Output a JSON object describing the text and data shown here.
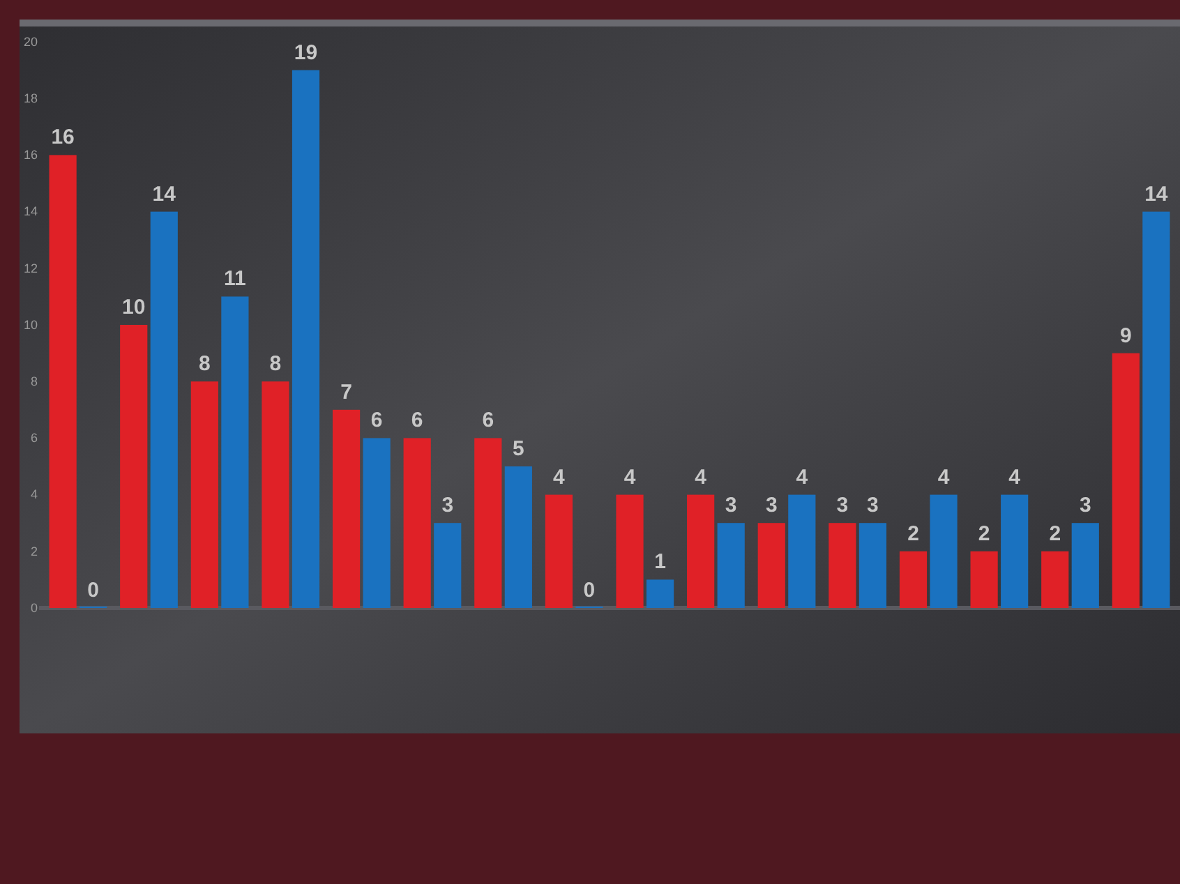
{
  "chart_data": {
    "type": "bar",
    "categories": [
      null,
      null,
      null,
      null,
      null,
      null,
      null,
      null,
      null,
      null,
      null,
      null,
      null,
      null,
      null,
      null
    ],
    "series": [
      {
        "color": "#e02127",
        "values": [
          16,
          10,
          8,
          8,
          7,
          6,
          6,
          4,
          4,
          4,
          3,
          3,
          2,
          2,
          2,
          9
        ]
      },
      {
        "color": "#1a72c0",
        "values": [
          0,
          14,
          11,
          19,
          6,
          3,
          5,
          0,
          1,
          3,
          4,
          3,
          4,
          4,
          3,
          14
        ]
      }
    ],
    "ylim": [
      0,
      20
    ],
    "yticks": [
      0,
      2,
      4,
      6,
      8,
      10,
      12,
      14,
      16,
      18,
      20
    ],
    "data_labels": true
  }
}
